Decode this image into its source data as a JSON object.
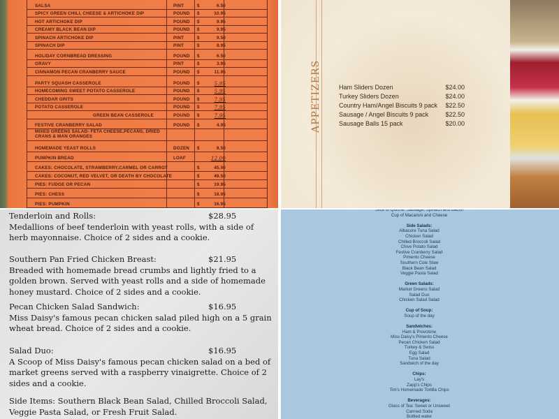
{
  "order_sheet": {
    "rows": [
      {
        "item": "SALSA",
        "unit": "PINT",
        "cur": "$",
        "price": "6.50"
      },
      {
        "item": "SPICY GREEN CHILI, CHEESE & ARTICHOKE DIP",
        "unit": "POUND",
        "cur": "$",
        "price": "10.95"
      },
      {
        "item": "HOT ARTICHOKE DIP",
        "unit": "POUND",
        "cur": "$",
        "price": "9.95"
      },
      {
        "item": "CREAMY BLACK BEAN DIP",
        "unit": "POUND",
        "cur": "$",
        "price": "9.95"
      },
      {
        "item": "SPINACH ARTICHOKE DIP",
        "unit": "PINT",
        "cur": "$",
        "price": "9.50"
      },
      {
        "item": "SPINACH DIP",
        "unit": "PINT",
        "cur": "$",
        "price": "8.95"
      },
      {
        "item": "HOLIDAY CORNBREAD DRESSING",
        "unit": "POUND",
        "cur": "$",
        "price": "6.50"
      },
      {
        "item": "GRAVY",
        "unit": "PINT",
        "cur": "$",
        "price": "3.95"
      },
      {
        "item": "CINNAMON PECAN CRANBERRY SAUCE",
        "unit": "POUND",
        "cur": "$",
        "price": "11.95"
      },
      {
        "item": "PARTY SQUASH CASSEROLE",
        "unit": "POUND",
        "cur": "$",
        "price": "5.95"
      },
      {
        "item": "HOMECOMING SWEET POTATO CASSEROLE",
        "unit": "POUND",
        "cur": "$",
        "price": "5.95"
      },
      {
        "item": "CHEDDAR GRITS",
        "unit": "POUND",
        "cur": "$",
        "price": "7.95"
      },
      {
        "item": "POTATO CASSEROLE",
        "unit": "POUND",
        "cur": "$",
        "price": "7.95"
      },
      {
        "item": "GREEN BEAN CASSEROLE",
        "unit": "POUND",
        "cur": "$",
        "price": "7.95"
      },
      {
        "item": "FESTIVE CRANBERRY SALAD",
        "unit": "POUND",
        "cur": "$",
        "price": "4.95"
      },
      {
        "item": "MIXED GREENS SALAD- FETA CHEESE,PECANS, DRIED CRANS & MAN ORANGES",
        "unit": "",
        "cur": "",
        "price": ""
      },
      {
        "item": "HOMEMADE YEAST ROLLS",
        "unit": "DOZEN",
        "cur": "$",
        "price": "8.50"
      },
      {
        "item": "PUMPKIN BREAD",
        "unit": "LOAF",
        "cur": "",
        "price": "12.00"
      },
      {
        "item": "CAKES: CHOCOLATE, STRAWBERRY,CARMEL OR CARROT",
        "unit": "",
        "cur": "$",
        "price": "45.00"
      },
      {
        "item": "CAKES: COCONUT, RED VELVET, OR DEATH BY CHOCOLATE",
        "unit": "",
        "cur": "$",
        "price": "49.50"
      },
      {
        "item": "PIES: FUDGE OR PECAN",
        "unit": "",
        "cur": "$",
        "price": "19.95"
      },
      {
        "item": "PIES: CHESS",
        "unit": "",
        "cur": "$",
        "price": "18.95"
      },
      {
        "item": "PIES: PUMPKIN",
        "unit": "",
        "cur": "$",
        "price": "16.95"
      }
    ]
  },
  "appetizers": {
    "title": "APPETIZERS",
    "items": [
      {
        "name": "Ham Sliders Dozen",
        "price": "$24.00"
      },
      {
        "name": "Turkey Sliders Dozen",
        "price": "$24.00"
      },
      {
        "name": "Country Ham/Angel Biscuits 9 pack",
        "price": "$22.50"
      },
      {
        "name": "Sausage / Angel Biscuits 9 pack",
        "price": "$22.50"
      },
      {
        "name": "Sausage Balls 15 pack",
        "price": "$20.00"
      }
    ]
  },
  "typed_menu": {
    "items": [
      {
        "name": "Tenderloin and Rolls:",
        "price": "$28.95",
        "desc": "Medallions of beef tenderloin with yeast rolls, with a side of herb mayonnaise. Choice of 2 sides and a cookie."
      },
      {
        "name": "Southern Pan Fried Chicken Breast:",
        "price": "$21.95",
        "desc": "Breaded with homemade bread crumbs and lightly fried to a golden brown. Served with yeast rolls and a side of homemade honey mustard. Choice of 2 sides and a cookie."
      },
      {
        "name": "Pecan Chicken Salad Sandwich:",
        "price": "$16.95",
        "desc": "Miss Daisy's famous pecan chicken salad piled high on a 5 grain wheat bread. Choice of 2 sides and a cookie."
      },
      {
        "name": "Salad Duo:",
        "price": "$16.95",
        "desc": "A Scoop of Miss Daisy's famous pecan chicken salad on a bed of market greens served with a raspberry vinaigrette. Choice of 2 sides and a cookie."
      }
    ],
    "side_items": "Side Items: Southern Black Bean Salad, Chilled Broccoli Salad, Veggie Pasta Salad, or Fresh Fruit Salad."
  },
  "blue_menu": {
    "top": [
      "Slice of Quiche: Sausage, Spinach and Bacon",
      "Cup of Macaroni and Cheese"
    ],
    "sections": [
      {
        "title": "Side Salads:",
        "items": [
          "Albacore Tuna Salad",
          "Chicken Salad",
          "Chilled Broccoli Salad",
          "Chive Potato Salad",
          "Festive Cranberry Salad",
          "Pimento Cheese",
          "Southern Cole Slaw",
          "Black Bean Salad",
          "Veggie Pasta Salad"
        ]
      },
      {
        "title": "Green Salads:",
        "items": [
          "Market Greens Salad",
          "Salad Duo",
          "Chicken Salad Salad"
        ]
      },
      {
        "title": "Cup of Soup:",
        "items": [
          "Soup of the day"
        ]
      },
      {
        "title": "Sandwiches:",
        "items": [
          "Ham & Provolone",
          "Miss Daisy's Pimento Cheese",
          "Pecan Chicken Salad",
          "Turkey & Swiss",
          "Egg Salad",
          "Tuna Salad",
          "Sandwich of the day"
        ]
      },
      {
        "title": "Chips:",
        "items": [
          "Lay's",
          "Zapp's Chips",
          "Tim's Homemade Tortilla Chips"
        ]
      },
      {
        "title": "Beverages:",
        "items": [
          "Glass of Tea: Sweet or Unsweet",
          "Canned Soda",
          "Bottled water"
        ]
      }
    ]
  }
}
